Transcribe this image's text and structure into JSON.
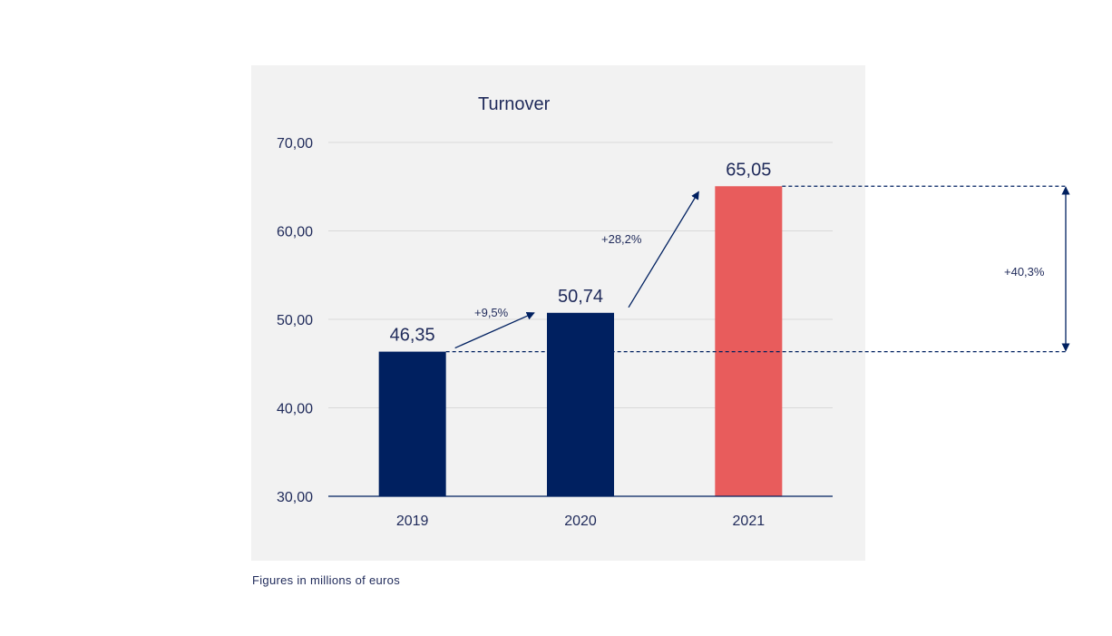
{
  "chart_data": {
    "type": "bar",
    "title": "Turnover",
    "categories": [
      "2019",
      "2020",
      "2021"
    ],
    "values": [
      46.35,
      50.74,
      65.05
    ],
    "value_labels": [
      "46,35",
      "50,74",
      "65,05"
    ],
    "bar_colors": [
      "#002060",
      "#002060",
      "#e85c5c"
    ],
    "ylim": [
      30,
      70
    ],
    "yticks": [
      30,
      40,
      50,
      60,
      70
    ],
    "ytick_labels": [
      "30,00",
      "40,00",
      "50,00",
      "60,00",
      "70,00"
    ],
    "grid": true,
    "annotations": {
      "growth_2019_2020": "+9,5%",
      "growth_2020_2021": "+28,2%",
      "growth_2019_2021": "+40,3%"
    }
  },
  "footnote": "Figures in millions of euros",
  "colors": {
    "navy": "#002060",
    "highlight": "#e85c5c",
    "panel": "#f2f2f2"
  }
}
